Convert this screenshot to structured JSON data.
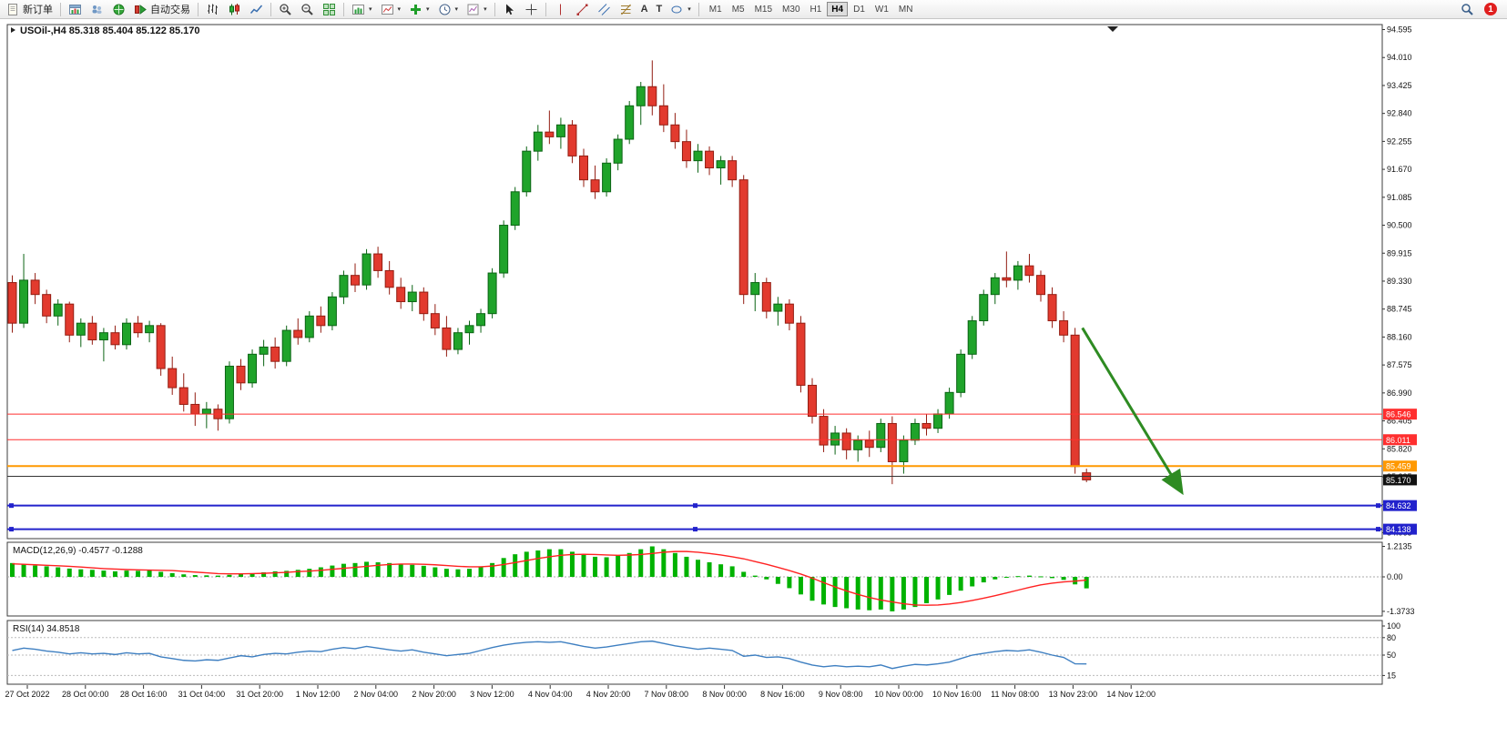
{
  "toolbar": {
    "new_order_label": "新订单",
    "auto_trading_label": "自动交易",
    "text_tool_label": "A",
    "label_tool_label": "T",
    "timeframes": [
      "M1",
      "M5",
      "M15",
      "M30",
      "H1",
      "H4",
      "D1",
      "W1",
      "MN"
    ],
    "active_timeframe": "H4",
    "notification_badge": "1"
  },
  "icons": {
    "new_order": "document",
    "auto_trading": "red-stop-green-play",
    "chart_types": [
      "ohlc-bars",
      "candlesticks",
      "line"
    ],
    "zoom_in": "magnifier-plus",
    "zoom_out": "magnifier-minus",
    "tile_windows": "green-grid",
    "cursor": "arrow-pointer",
    "crosshair": "cross",
    "search": "magnifier",
    "notification": "red-circle-badge"
  },
  "chart_data": {
    "type": "candlestick",
    "symbol": "USOil-",
    "timeframe": "H4",
    "title": "USOil-,H4 85.318 85.404 85.122 85.170",
    "current_ohlc": {
      "open": "85.318",
      "high": "85.404",
      "low": "85.122",
      "close": "85.170"
    },
    "ylim": [
      83.94,
      94.7
    ],
    "grid": false,
    "legend_position": "none",
    "price_ticks": [
      "94.595",
      "94.010",
      "93.425",
      "92.840",
      "92.255",
      "91.670",
      "91.085",
      "90.500",
      "89.915",
      "89.330",
      "88.745",
      "88.160",
      "87.575",
      "86.990",
      "86.405",
      "85.820",
      "85.235",
      "84.650",
      "84.065"
    ],
    "time_labels": [
      "27 Oct 2022",
      "28 Oct 00:00",
      "28 Oct 16:00",
      "31 Oct 04:00",
      "31 Oct 20:00",
      "1 Nov 12:00",
      "2 Nov 04:00",
      "2 Nov 20:00",
      "3 Nov 12:00",
      "4 Nov 04:00",
      "4 Nov 20:00",
      "7 Nov 08:00",
      "8 Nov 00:00",
      "8 Nov 16:00",
      "9 Nov 08:00",
      "10 Nov 00:00",
      "10 Nov 16:00",
      "11 Nov 08:00",
      "13 Nov 23:00",
      "14 Nov 12:00"
    ],
    "colors": {
      "up": "#1fa32a",
      "down": "#e23a2e",
      "up_border": "#0b6414",
      "down_border": "#931d12"
    },
    "candles": [
      [
        89.3,
        89.45,
        88.25,
        88.45
      ],
      [
        88.45,
        89.9,
        88.35,
        89.35
      ],
      [
        89.35,
        89.5,
        88.85,
        89.05
      ],
      [
        89.05,
        89.15,
        88.45,
        88.6
      ],
      [
        88.6,
        88.95,
        88.4,
        88.85
      ],
      [
        88.85,
        88.9,
        88.05,
        88.2
      ],
      [
        88.2,
        88.55,
        87.95,
        88.45
      ],
      [
        88.45,
        88.6,
        88.0,
        88.1
      ],
      [
        88.1,
        88.35,
        87.65,
        88.25
      ],
      [
        88.25,
        88.4,
        87.9,
        88.0
      ],
      [
        88.0,
        88.55,
        87.9,
        88.45
      ],
      [
        88.45,
        88.6,
        88.15,
        88.25
      ],
      [
        88.25,
        88.5,
        88.05,
        88.4
      ],
      [
        88.4,
        88.45,
        87.35,
        87.5
      ],
      [
        87.5,
        87.75,
        86.95,
        87.1
      ],
      [
        87.1,
        87.4,
        86.6,
        86.75
      ],
      [
        86.75,
        87.0,
        86.3,
        86.55
      ],
      [
        86.55,
        86.8,
        86.25,
        86.65
      ],
      [
        86.65,
        86.75,
        86.2,
        86.45
      ],
      [
        86.45,
        87.65,
        86.35,
        87.55
      ],
      [
        87.55,
        87.7,
        87.05,
        87.2
      ],
      [
        87.2,
        87.9,
        87.1,
        87.8
      ],
      [
        87.8,
        88.1,
        87.55,
        87.95
      ],
      [
        87.95,
        88.15,
        87.5,
        87.65
      ],
      [
        87.65,
        88.4,
        87.55,
        88.3
      ],
      [
        88.3,
        88.55,
        88.0,
        88.15
      ],
      [
        88.15,
        88.7,
        88.05,
        88.6
      ],
      [
        88.6,
        88.8,
        88.25,
        88.4
      ],
      [
        88.4,
        89.1,
        88.3,
        89.0
      ],
      [
        89.0,
        89.55,
        88.85,
        89.45
      ],
      [
        89.45,
        89.7,
        89.1,
        89.25
      ],
      [
        89.25,
        90.0,
        89.15,
        89.9
      ],
      [
        89.9,
        90.05,
        89.4,
        89.55
      ],
      [
        89.55,
        89.75,
        89.05,
        89.2
      ],
      [
        89.2,
        89.4,
        88.75,
        88.9
      ],
      [
        88.9,
        89.25,
        88.7,
        89.1
      ],
      [
        89.1,
        89.2,
        88.5,
        88.65
      ],
      [
        88.65,
        88.85,
        88.2,
        88.35
      ],
      [
        88.35,
        88.6,
        87.75,
        87.9
      ],
      [
        87.9,
        88.35,
        87.8,
        88.25
      ],
      [
        88.25,
        88.5,
        88.0,
        88.4
      ],
      [
        88.4,
        88.75,
        88.25,
        88.65
      ],
      [
        88.65,
        89.6,
        88.55,
        89.5
      ],
      [
        89.5,
        90.6,
        89.4,
        90.5
      ],
      [
        90.5,
        91.3,
        90.4,
        91.2
      ],
      [
        91.2,
        92.15,
        91.1,
        92.05
      ],
      [
        92.05,
        92.6,
        91.85,
        92.45
      ],
      [
        92.45,
        92.9,
        92.2,
        92.35
      ],
      [
        92.35,
        92.75,
        92.1,
        92.6
      ],
      [
        92.6,
        92.7,
        91.8,
        91.95
      ],
      [
        91.95,
        92.1,
        91.3,
        91.45
      ],
      [
        91.45,
        91.75,
        91.05,
        91.2
      ],
      [
        91.2,
        91.9,
        91.1,
        91.8
      ],
      [
        91.8,
        92.4,
        91.65,
        92.3
      ],
      [
        92.3,
        93.1,
        92.2,
        93.0
      ],
      [
        93.0,
        93.5,
        92.6,
        93.4
      ],
      [
        93.4,
        93.95,
        92.8,
        93.0
      ],
      [
        93.0,
        93.45,
        92.45,
        92.6
      ],
      [
        92.6,
        92.85,
        92.1,
        92.25
      ],
      [
        92.25,
        92.5,
        91.7,
        91.85
      ],
      [
        91.85,
        92.2,
        91.6,
        92.05
      ],
      [
        92.05,
        92.15,
        91.55,
        91.7
      ],
      [
        91.7,
        91.95,
        91.35,
        91.85
      ],
      [
        91.85,
        91.95,
        91.3,
        91.45
      ],
      [
        91.45,
        91.55,
        88.85,
        89.05
      ],
      [
        89.05,
        89.5,
        88.7,
        89.3
      ],
      [
        89.3,
        89.4,
        88.55,
        88.7
      ],
      [
        88.7,
        89.0,
        88.4,
        88.85
      ],
      [
        88.85,
        88.95,
        88.3,
        88.45
      ],
      [
        88.45,
        88.6,
        87.0,
        87.15
      ],
      [
        87.15,
        87.3,
        86.35,
        86.5
      ],
      [
        86.5,
        86.65,
        85.75,
        85.9
      ],
      [
        85.9,
        86.3,
        85.7,
        86.15
      ],
      [
        86.15,
        86.25,
        85.6,
        85.8
      ],
      [
        85.8,
        86.1,
        85.55,
        86.0
      ],
      [
        86.0,
        86.2,
        85.65,
        85.85
      ],
      [
        85.85,
        86.45,
        85.75,
        86.35
      ],
      [
        86.35,
        86.5,
        85.08,
        85.55
      ],
      [
        85.55,
        86.1,
        85.3,
        86.0
      ],
      [
        86.0,
        86.45,
        85.9,
        86.35
      ],
      [
        86.35,
        86.55,
        86.1,
        86.25
      ],
      [
        86.25,
        86.65,
        86.15,
        86.55
      ],
      [
        86.55,
        87.1,
        86.45,
        87.0
      ],
      [
        87.0,
        87.9,
        86.9,
        87.8
      ],
      [
        87.8,
        88.6,
        87.7,
        88.5
      ],
      [
        88.5,
        89.15,
        88.4,
        89.05
      ],
      [
        89.05,
        89.5,
        88.85,
        89.4
      ],
      [
        89.4,
        89.95,
        89.2,
        89.35
      ],
      [
        89.35,
        89.75,
        89.15,
        89.65
      ],
      [
        89.65,
        89.9,
        89.3,
        89.45
      ],
      [
        89.45,
        89.55,
        88.9,
        89.05
      ],
      [
        89.05,
        89.2,
        88.35,
        88.5
      ],
      [
        88.5,
        88.7,
        88.05,
        88.2
      ],
      [
        88.2,
        88.35,
        85.3,
        85.45
      ],
      [
        85.318,
        85.404,
        85.122,
        85.17
      ]
    ],
    "horizontal_lines": [
      {
        "price": 86.546,
        "label": "86.546",
        "color": "#ff2f2f",
        "width": 1
      },
      {
        "price": 86.011,
        "label": "86.011",
        "color": "#ff2f2f",
        "width": 1
      },
      {
        "price": 85.459,
        "label": "85.459",
        "color": "#ff9900",
        "width": 2
      },
      {
        "price": 85.245,
        "label": "",
        "color": "#333333",
        "width": 1
      },
      {
        "price": 84.632,
        "label": "84.632",
        "color": "#2222cc",
        "width": 2,
        "handles": true
      },
      {
        "price": 84.138,
        "label": "84.138",
        "color": "#2222cc",
        "width": 2,
        "handles": true
      }
    ],
    "current_price_tag": {
      "label": "85.170",
      "price": 85.17,
      "bg": "#111111"
    },
    "annotation_arrow": {
      "from": {
        "bar": 94.0,
        "price": 88.35
      },
      "to": {
        "bar": 102.6,
        "price": 84.95
      },
      "color": "#2e8b22"
    },
    "indicators": [
      {
        "name": "MACD",
        "label": "MACD(12,26,9) -0.4577 -0.1288",
        "main_value": "-0.4577",
        "signal_value": "-0.1288",
        "histogram_color": "#00b200",
        "signal_color": "#ff2222",
        "scale_ticks": [
          {
            "label": "1.2135",
            "value": 1.2135
          },
          {
            "label": "0.00",
            "value": 0
          },
          {
            "label": "-1.3733",
            "value": -1.3733
          }
        ],
        "histogram": [
          0.55,
          0.5,
          0.45,
          0.42,
          0.38,
          0.33,
          0.3,
          0.28,
          0.25,
          0.22,
          0.25,
          0.24,
          0.26,
          0.2,
          0.15,
          0.1,
          0.07,
          0.06,
          0.05,
          0.08,
          0.12,
          0.14,
          0.18,
          0.22,
          0.24,
          0.28,
          0.32,
          0.38,
          0.45,
          0.52,
          0.55,
          0.6,
          0.58,
          0.55,
          0.5,
          0.48,
          0.44,
          0.38,
          0.32,
          0.3,
          0.32,
          0.4,
          0.55,
          0.75,
          0.9,
          1.0,
          1.05,
          1.1,
          1.1,
          1.0,
          0.9,
          0.8,
          0.78,
          0.85,
          0.95,
          1.1,
          1.2135,
          1.1,
          0.95,
          0.8,
          0.68,
          0.58,
          0.5,
          0.42,
          0.2,
          0.05,
          -0.1,
          -0.28,
          -0.45,
          -0.7,
          -0.95,
          -1.1,
          -1.2,
          -1.25,
          -1.3,
          -1.33,
          -1.3,
          -1.3733,
          -1.3,
          -1.2,
          -1.05,
          -0.9,
          -0.72,
          -0.55,
          -0.38,
          -0.22,
          -0.1,
          -0.02,
          0.03,
          0.05,
          0.02,
          -0.05,
          -0.12,
          -0.3,
          -0.4577
        ],
        "signal": [
          0.52,
          0.5,
          0.48,
          0.46,
          0.44,
          0.42,
          0.39,
          0.36,
          0.33,
          0.31,
          0.29,
          0.28,
          0.27,
          0.26,
          0.25,
          0.22,
          0.19,
          0.16,
          0.13,
          0.12,
          0.12,
          0.13,
          0.14,
          0.16,
          0.18,
          0.21,
          0.23,
          0.26,
          0.3,
          0.34,
          0.38,
          0.42,
          0.46,
          0.49,
          0.51,
          0.51,
          0.5,
          0.48,
          0.45,
          0.42,
          0.4,
          0.4,
          0.43,
          0.49,
          0.57,
          0.65,
          0.73,
          0.8,
          0.86,
          0.89,
          0.9,
          0.89,
          0.87,
          0.86,
          0.87,
          0.89,
          0.93,
          0.98,
          1.01,
          1.01,
          0.98,
          0.93,
          0.87,
          0.8,
          0.72,
          0.61,
          0.5,
          0.38,
          0.25,
          0.11,
          -0.05,
          -0.23,
          -0.4,
          -0.56,
          -0.7,
          -0.82,
          -0.92,
          -1.0,
          -1.07,
          -1.12,
          -1.13,
          -1.12,
          -1.08,
          -1.02,
          -0.94,
          -0.85,
          -0.75,
          -0.64,
          -0.53,
          -0.42,
          -0.32,
          -0.25,
          -0.2,
          -0.17,
          -0.1288
        ]
      },
      {
        "name": "RSI",
        "label": "RSI(14) 34.8518",
        "current_value": "34.8518",
        "line_color": "#3e7fc1",
        "levels": [
          80,
          50,
          15
        ],
        "scale_ticks": [
          {
            "label": "100",
            "value": 100
          },
          {
            "label": "80",
            "value": 80
          },
          {
            "label": "50",
            "value": 50
          },
          {
            "label": "15",
            "value": 15
          }
        ],
        "values": [
          58,
          62,
          60,
          57,
          55,
          52,
          54,
          52,
          53,
          51,
          54,
          52,
          53,
          47,
          44,
          41,
          40,
          42,
          41,
          45,
          49,
          47,
          51,
          53,
          52,
          55,
          57,
          56,
          60,
          63,
          61,
          65,
          62,
          59,
          57,
          59,
          55,
          52,
          49,
          51,
          53,
          58,
          63,
          67,
          70,
          72,
          73,
          72,
          73,
          69,
          65,
          62,
          64,
          67,
          70,
          73,
          74,
          70,
          66,
          63,
          60,
          62,
          60,
          58,
          48,
          50,
          46,
          47,
          44,
          38,
          33,
          30,
          32,
          30,
          31,
          30,
          33,
          27,
          31,
          34,
          33,
          35,
          38,
          44,
          50,
          53,
          56,
          58,
          57,
          59,
          55,
          50,
          46,
          35,
          34.85
        ]
      }
    ]
  }
}
